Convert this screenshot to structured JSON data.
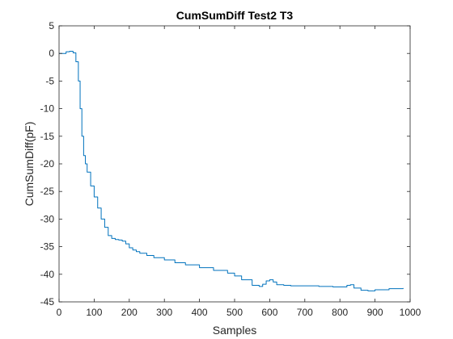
{
  "chart_data": {
    "type": "line",
    "title": "CumSumDiff Test2 T3",
    "xlabel": "Samples",
    "ylabel": "CumSumDiff(pF)",
    "xlim": [
      0,
      1000
    ],
    "ylim": [
      -45,
      5
    ],
    "xticks": [
      0,
      100,
      200,
      300,
      400,
      500,
      600,
      700,
      800,
      900,
      1000
    ],
    "yticks": [
      5,
      0,
      -5,
      -10,
      -15,
      -20,
      -25,
      -30,
      -35,
      -40,
      -45
    ],
    "grid": false,
    "line_color": "#0072BD",
    "series": [
      {
        "x": [
          0,
          10,
          20,
          30,
          40,
          48,
          55,
          60,
          65,
          70,
          75,
          80,
          90,
          100,
          110,
          120,
          130,
          140,
          150,
          160,
          170,
          180,
          190,
          200,
          210,
          220,
          230,
          250,
          270,
          300,
          330,
          360,
          400,
          440,
          480,
          500,
          520,
          550,
          570,
          580,
          590,
          600,
          610,
          620,
          640,
          660,
          700,
          740,
          780,
          820,
          830,
          840,
          860,
          880,
          900,
          940,
          980
        ],
        "y": [
          0.0,
          0.0,
          0.3,
          0.4,
          0.1,
          -1.5,
          -5.0,
          -10.0,
          -15.0,
          -18.5,
          -20.0,
          -21.5,
          -24.0,
          -26.0,
          -28.0,
          -30.0,
          -31.5,
          -33.0,
          -33.5,
          -33.7,
          -33.8,
          -34.0,
          -34.5,
          -35.2,
          -35.6,
          -35.9,
          -36.2,
          -36.6,
          -37.0,
          -37.4,
          -37.9,
          -38.3,
          -38.8,
          -39.3,
          -39.8,
          -40.3,
          -41.0,
          -42.0,
          -42.2,
          -41.8,
          -41.2,
          -41.0,
          -41.4,
          -41.9,
          -42.0,
          -42.1,
          -42.1,
          -42.2,
          -42.3,
          -42.0,
          -41.9,
          -42.5,
          -42.9,
          -43.0,
          -42.8,
          -42.6,
          -42.5
        ]
      }
    ]
  }
}
